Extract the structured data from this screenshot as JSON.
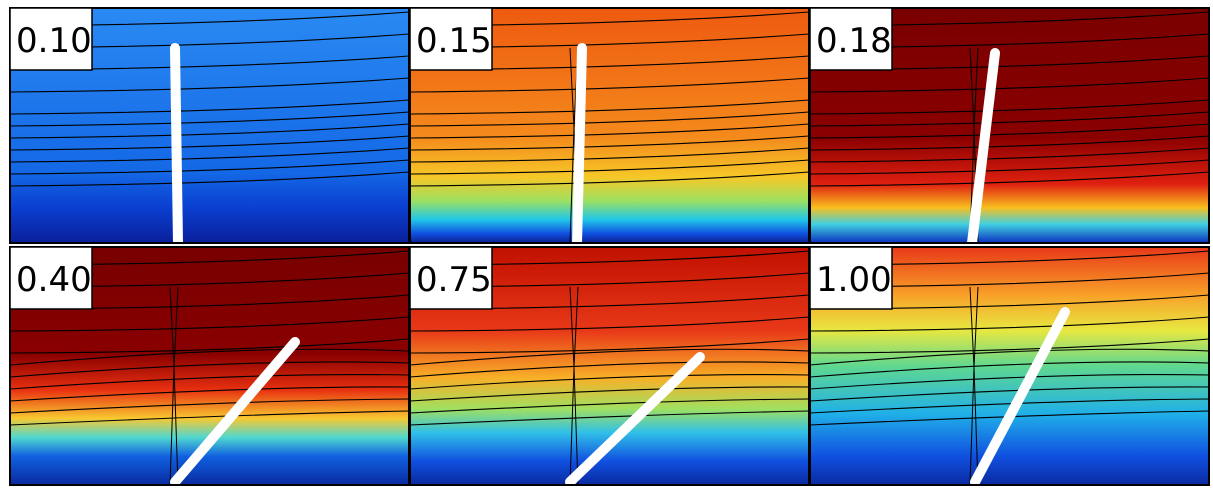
{
  "panels": [
    {
      "label": "0.10"
    },
    {
      "label": "0.15"
    },
    {
      "label": "0.18"
    },
    {
      "label": "0.40"
    },
    {
      "label": "0.75"
    },
    {
      "label": "1.00"
    }
  ]
}
